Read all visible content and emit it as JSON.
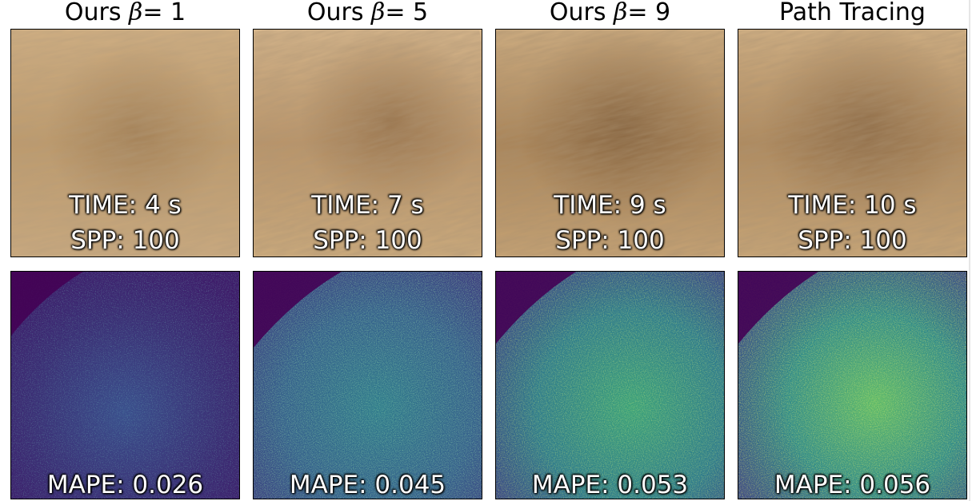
{
  "columns": [
    {
      "title_prefix": "Ours",
      "beta_symbol": "β",
      "beta_value": "= 1",
      "time": "TIME: 4 s",
      "spp": "SPP: 100",
      "mape": "MAPE: 0.026"
    },
    {
      "title_prefix": "Ours",
      "beta_symbol": "β",
      "beta_value": "= 5",
      "time": "TIME: 7 s",
      "spp": "SPP: 100",
      "mape": "MAPE: 0.045"
    },
    {
      "title_prefix": "Ours",
      "beta_symbol": "β",
      "beta_value": "= 9",
      "time": "TIME: 9 s",
      "spp": "SPP: 100",
      "mape": "MAPE: 0.053"
    },
    {
      "title": "Path Tracing",
      "time": "TIME: 10 s",
      "spp": "SPP: 100",
      "mape": "MAPE: 0.056"
    }
  ],
  "colors": {
    "hair_light": "#d7b88e",
    "hair_mid": "#b89468",
    "hair_dark": "#8f6c45",
    "error_low": "#440154",
    "error_mid": "#2f6b8e",
    "error_high": "#4fbf6e",
    "error_peak": "#c8e02a"
  },
  "error_levels": [
    0.026,
    0.045,
    0.053,
    0.056
  ]
}
